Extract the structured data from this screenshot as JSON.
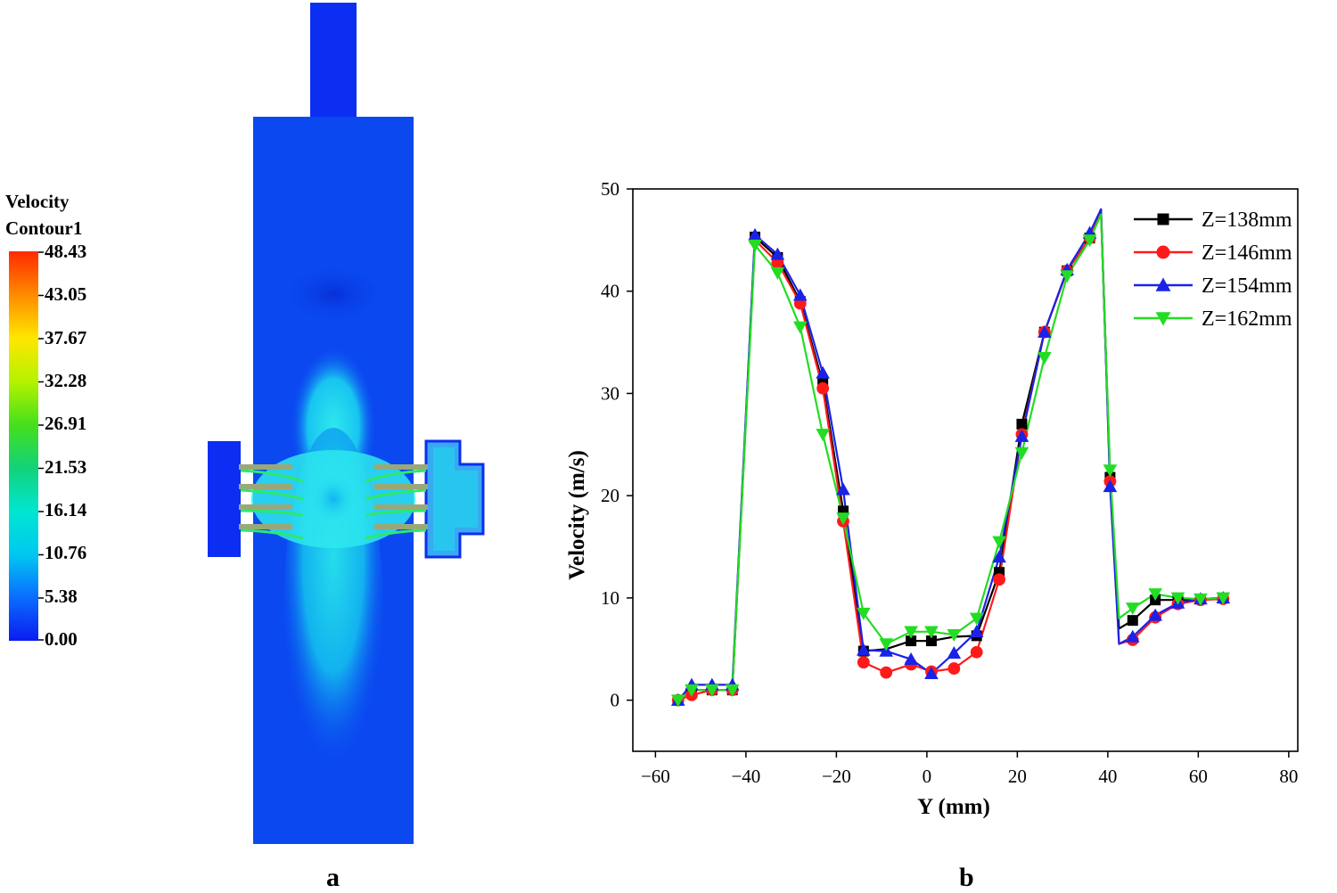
{
  "panel_a": {
    "label": "a",
    "colorbar": {
      "title_line1": "Velocity",
      "title_line2": "Contour1",
      "ticks": [
        "48.43",
        "43.05",
        "37.67",
        "32.28",
        "26.91",
        "21.53",
        "16.14",
        "10.76",
        "5.38",
        "0.00"
      ],
      "colors": [
        "#ff2a00",
        "#ff8a00",
        "#ffe600",
        "#b6f200",
        "#46e01a",
        "#12d27a",
        "#00e6d2",
        "#00c8f0",
        "#0a6cff",
        "#0a1cf0"
      ]
    }
  },
  "panel_b": {
    "label": "b"
  },
  "chart_data": {
    "type": "line",
    "xlabel": "Y (mm)",
    "ylabel": "Velocity (m/s)",
    "xlim": [
      -65,
      82
    ],
    "ylim": [
      -5,
      50
    ],
    "xticks": [
      -60,
      -40,
      -20,
      0,
      20,
      40,
      60,
      80
    ],
    "yticks": [
      0,
      10,
      20,
      30,
      40,
      50
    ],
    "xtick_labels": [
      "−60",
      "−40",
      "−20",
      "0",
      "20",
      "40",
      "60",
      "80"
    ],
    "ytick_labels": [
      "0",
      "10",
      "20",
      "30",
      "40",
      "50"
    ],
    "legend_position": "top-right",
    "series": [
      {
        "name": "Z=138mm",
        "color": "#000000",
        "marker": "square",
        "x": [
          -55,
          -52,
          -47.5,
          -43,
          -38,
          -33,
          -28,
          -23,
          -18.5,
          -14,
          -9,
          -3.5,
          1,
          6,
          11,
          16,
          21,
          26,
          31,
          36,
          38.5,
          40.5,
          42.5,
          45.5,
          50.5,
          55.5,
          60.5,
          65.5
        ],
        "y": [
          0,
          1,
          1,
          1,
          45.3,
          43.3,
          39,
          31,
          18.5,
          4.8,
          5,
          5.8,
          5.8,
          6.2,
          6.3,
          12.5,
          27,
          36,
          42,
          45.2,
          48,
          21.8,
          7,
          7.8,
          9.8,
          9.8,
          9.9,
          10
        ],
        "markers": [
          1,
          1,
          1,
          1,
          1,
          1,
          1,
          1,
          1,
          1,
          0,
          1,
          1,
          0,
          1,
          1,
          1,
          1,
          1,
          1,
          0,
          1,
          0,
          1,
          1,
          1,
          1,
          1
        ]
      },
      {
        "name": "Z=146mm",
        "color": "#ff1a1a",
        "marker": "circle",
        "x": [
          -55,
          -52,
          -47.5,
          -43,
          -38,
          -33,
          -28,
          -23,
          -18.5,
          -14,
          -9,
          -3.5,
          1,
          6,
          11,
          16,
          21,
          26,
          31,
          36,
          38.5,
          40.5,
          42.5,
          45.5,
          50.5,
          55.5,
          60.5,
          65.5
        ],
        "y": [
          0,
          0.5,
          1,
          1,
          45,
          42.8,
          38.8,
          30.5,
          17.5,
          3.7,
          2.7,
          3.5,
          2.8,
          3.1,
          4.7,
          11.8,
          26,
          36,
          42,
          45.2,
          48,
          21.4,
          5.5,
          5.9,
          8.1,
          9.4,
          9.8,
          9.9
        ],
        "markers": [
          1,
          1,
          1,
          1,
          1,
          1,
          1,
          1,
          1,
          1,
          1,
          1,
          1,
          1,
          1,
          1,
          1,
          1,
          1,
          1,
          0,
          1,
          0,
          1,
          1,
          1,
          1,
          1
        ]
      },
      {
        "name": "Z=154mm",
        "color": "#1a22e8",
        "marker": "triangle-up",
        "x": [
          -55,
          -52,
          -47.5,
          -43,
          -38,
          -33,
          -28,
          -23,
          -18.5,
          -14,
          -9,
          -3.5,
          1,
          6,
          11,
          16,
          21,
          26,
          31,
          36,
          38.5,
          40.5,
          42.5,
          45.5,
          50.5,
          55.5,
          60.5,
          65.5
        ],
        "y": [
          0,
          1.5,
          1.5,
          1.5,
          45.5,
          43.6,
          39.6,
          32,
          20.6,
          4.9,
          4.8,
          4,
          2.6,
          4.6,
          6.7,
          14,
          25.8,
          36,
          42.1,
          45.7,
          48,
          20.9,
          5.5,
          6.2,
          8.3,
          9.5,
          9.9,
          10
        ],
        "markers": [
          1,
          1,
          1,
          1,
          1,
          1,
          1,
          1,
          1,
          1,
          1,
          1,
          1,
          1,
          1,
          1,
          1,
          1,
          1,
          1,
          0,
          1,
          0,
          1,
          1,
          1,
          1,
          1
        ]
      },
      {
        "name": "Z=162mm",
        "color": "#22dd22",
        "marker": "triangle-down",
        "x": [
          -55,
          -52,
          -47.5,
          -43,
          -38,
          -33,
          -28,
          -23,
          -18.5,
          -14,
          -9,
          -3.5,
          1,
          6,
          11,
          16,
          21,
          26,
          31,
          36,
          38.5,
          40.5,
          42.5,
          45.5,
          50.5,
          55.5,
          60.5,
          65.5
        ],
        "y": [
          0,
          1,
          1,
          1,
          44.5,
          41.8,
          36.5,
          26,
          17.8,
          8.5,
          5.5,
          6.7,
          6.7,
          6.4,
          8,
          15.5,
          24.2,
          33.5,
          41.5,
          45,
          47.5,
          22.5,
          8,
          9,
          10.4,
          10,
          9.9,
          10
        ],
        "markers": [
          1,
          1,
          1,
          1,
          1,
          1,
          1,
          1,
          1,
          1,
          1,
          1,
          1,
          1,
          1,
          1,
          1,
          1,
          1,
          1,
          0,
          1,
          0,
          1,
          1,
          1,
          1,
          1
        ]
      }
    ]
  }
}
